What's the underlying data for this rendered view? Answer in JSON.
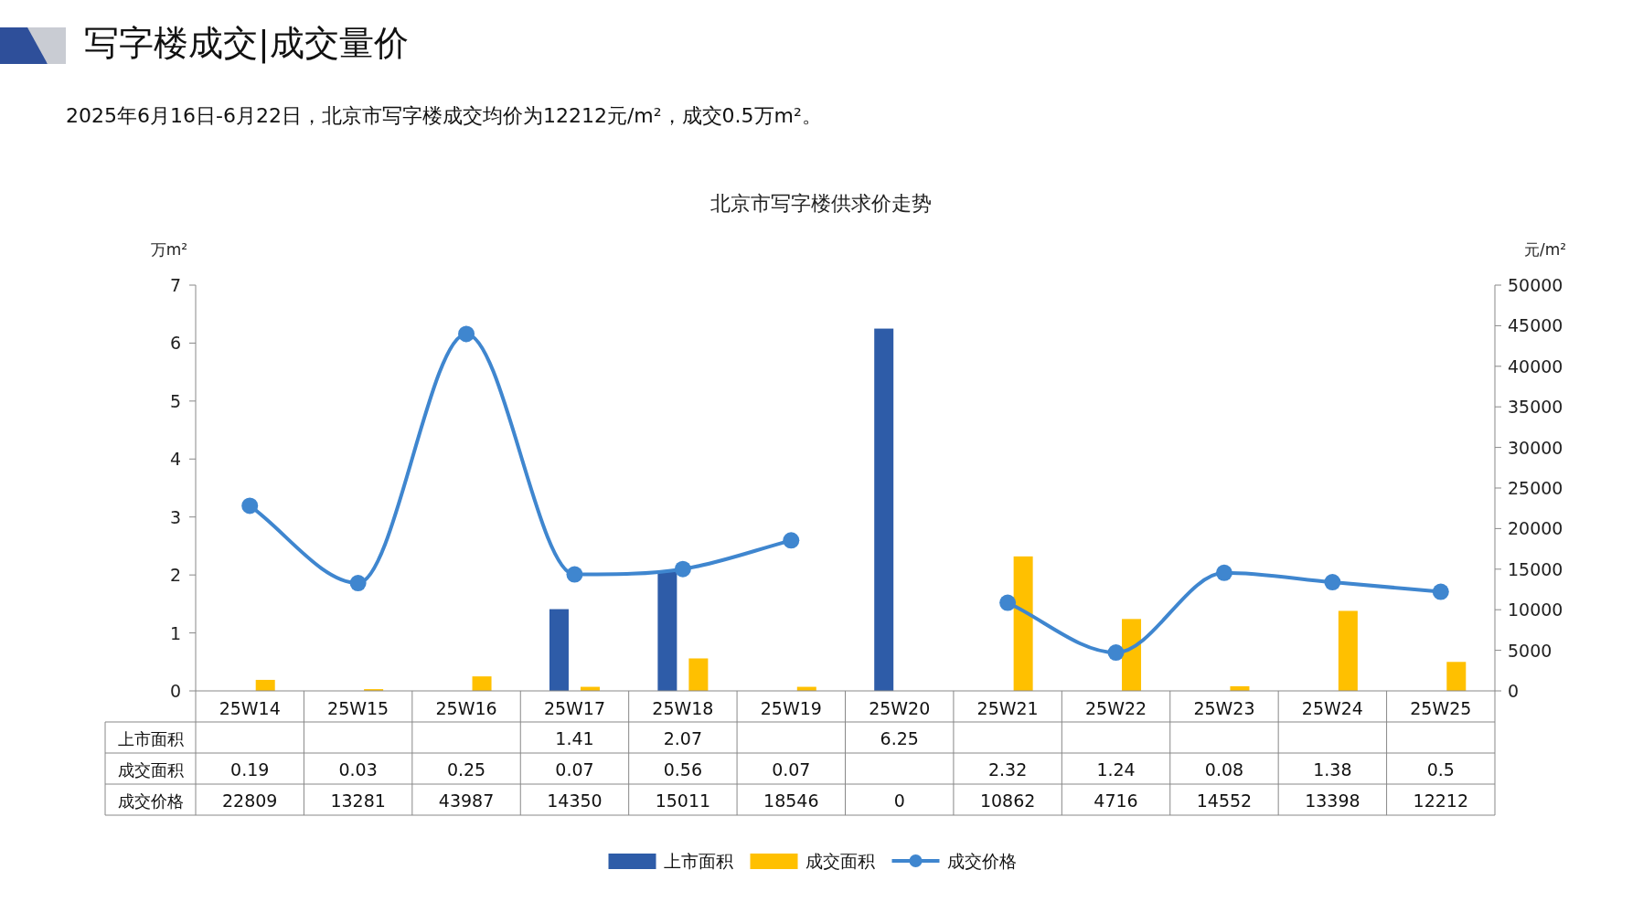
{
  "chart_data": {
    "type": "bar",
    "title": "北京市写字楼供求价走势",
    "annotations": [
      "写字楼成交|成交量价",
      "2025年6月16日-6月22日，北京市写字楼成交均价为12212元/m²，成交0.5万m²。"
    ],
    "categories": [
      "25W14",
      "25W15",
      "25W16",
      "25W17",
      "25W18",
      "25W19",
      "25W20",
      "25W21",
      "25W22",
      "25W23",
      "25W24",
      "25W25"
    ],
    "series": [
      {
        "name": "上市面积",
        "color": "#2e5ca8",
        "values": [
          null,
          null,
          null,
          1.41,
          2.07,
          null,
          6.25,
          null,
          null,
          null,
          null,
          null
        ],
        "value_labels": [
          null,
          null,
          null,
          "1.41",
          "2.07",
          null,
          "6.25",
          null,
          null,
          null,
          null,
          null
        ]
      },
      {
        "name": "成交面积",
        "color": "#ffc000",
        "values": [
          0.19,
          0.03,
          0.25,
          0.07,
          0.56,
          0.07,
          null,
          2.32,
          1.24,
          0.08,
          1.38,
          0.5
        ],
        "value_labels": [
          "0.19",
          "0.03",
          "0.25",
          "0.07",
          "0.56",
          "0.07",
          null,
          "2.32",
          "1.24",
          "0.08",
          "1.38",
          "0.5"
        ]
      },
      {
        "name": "成交价格",
        "type": "line",
        "axis": "y2",
        "color": "#3f86cf",
        "values": [
          22809,
          13281,
          43987,
          14350,
          15011,
          18546,
          null,
          10862,
          4716,
          14552,
          13398,
          12212
        ],
        "value_labels": [
          "22809",
          "13281",
          "43987",
          "14350",
          "15011",
          "18546",
          "0",
          "10862",
          "4716",
          "14552",
          "13398",
          "12212"
        ]
      }
    ],
    "ylabel": "万m²",
    "y2label": "元/m²",
    "ylim": [
      0,
      7
    ],
    "yticks": [
      0,
      1,
      2,
      3,
      4,
      5,
      6,
      7
    ],
    "y2lim": [
      0,
      50000
    ],
    "y2ticks": [
      0,
      5000,
      10000,
      15000,
      20000,
      25000,
      30000,
      35000,
      40000,
      45000,
      50000
    ],
    "marker": "circle",
    "line_style": "solid",
    "legend": "bottom"
  }
}
